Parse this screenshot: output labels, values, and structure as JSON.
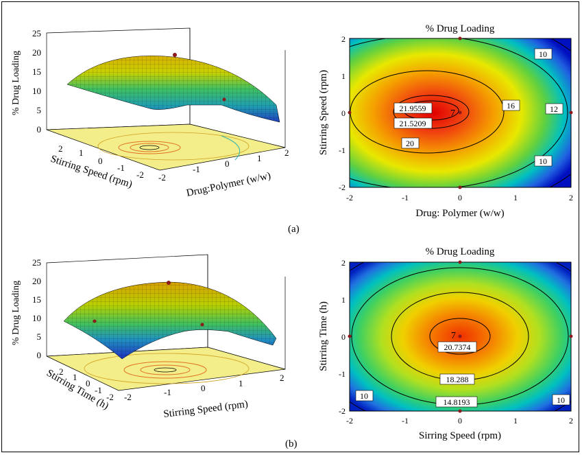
{
  "figure": {
    "caption_a": "(a)",
    "caption_b": "(b)"
  },
  "panels": [
    {
      "surface": {
        "zlabel": "% Drug Loading",
        "xlabel": "Drug:Polymer (w/w)",
        "ylabel": "Stirring Speed (rpm)",
        "zticks": [
          "25",
          "20",
          "15",
          "10",
          "5",
          "0"
        ],
        "xticks": [
          "-2",
          "-1",
          "0",
          "1",
          "2"
        ],
        "yticks": [
          "2",
          "1",
          "0",
          "-1",
          "-2"
        ]
      },
      "contour": {
        "title": "% Drug Loading",
        "xlabel": "Drug: Polymer (w/w)",
        "ylabel": "Stirring Speed (rpm)",
        "xticks": [
          "-2",
          "-1",
          "0",
          "1",
          "2"
        ],
        "yticks": [
          "2",
          "1",
          "0",
          "-1",
          "-2"
        ],
        "labels": [
          "21.9559",
          "21.5209",
          "20",
          "16",
          "12",
          "10",
          "10"
        ],
        "center_label": "7"
      }
    },
    {
      "surface": {
        "zlabel": "% Drug Loading",
        "xlabel": "Stirring Speed (rpm)",
        "ylabel": "Stirring Time (h)",
        "zticks": [
          "25",
          "20",
          "15",
          "10",
          "5",
          "0"
        ],
        "xticks": [
          "-2",
          "-1",
          "0",
          "1",
          "2"
        ],
        "yticks": [
          "2",
          "1",
          "0",
          "-1",
          "-2"
        ]
      },
      "contour": {
        "title": "% Drug Loading",
        "xlabel": "Sirring Speed (rpm)",
        "ylabel": "Stirring Time (h)",
        "xticks": [
          "-2",
          "-1",
          "0",
          "1",
          "2"
        ],
        "yticks": [
          "2",
          "1",
          "0",
          "-1",
          "-2"
        ],
        "labels": [
          "20.7374",
          "18.288",
          "14.8193",
          "10",
          "10"
        ],
        "center_label": "7"
      }
    }
  ],
  "chart_data": [
    {
      "type": "heatmap",
      "title": "% Drug Loading",
      "xlabel": "Drug: Polymer (w/w)",
      "ylabel": "Stirring Speed (rpm)",
      "xlim": [
        -2,
        2
      ],
      "ylim": [
        -2,
        2
      ],
      "contour_levels": [
        21.9559,
        21.5209,
        20,
        16,
        12,
        10
      ],
      "max_point": [
        -0.8,
        0.1
      ]
    },
    {
      "type": "heatmap",
      "title": "% Drug Loading",
      "xlabel": "Sirring Speed (rpm)",
      "ylabel": "Stirring Time (h)",
      "xlim": [
        -2,
        2
      ],
      "ylim": [
        -2,
        2
      ],
      "contour_levels": [
        20.7374,
        18.288,
        14.8193,
        10
      ],
      "max_point": [
        0.1,
        0.1
      ]
    }
  ]
}
